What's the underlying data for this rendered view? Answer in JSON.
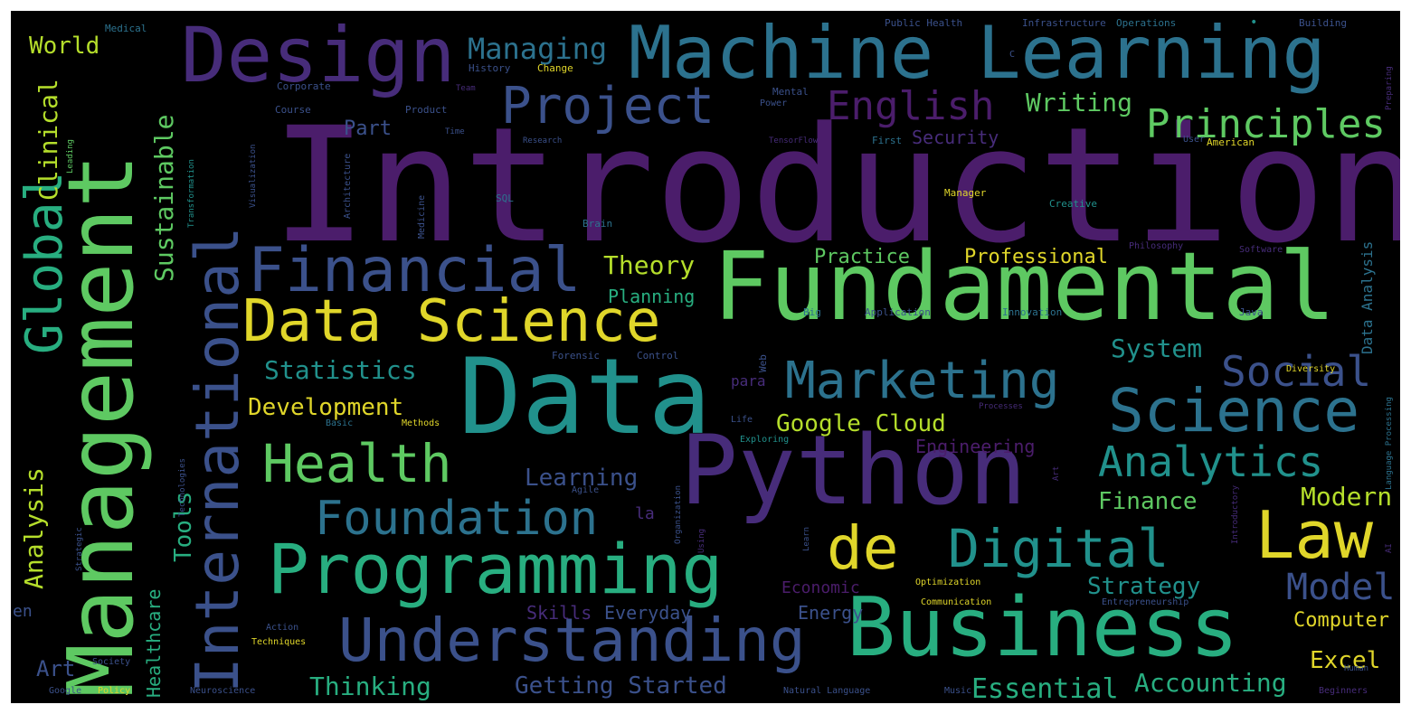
{
  "palette": {
    "background": "#000000",
    "frame": "#ffffff",
    "deep_purple": "#4b1d6b",
    "purple": "#472c7a",
    "indigo": "#3b518b",
    "blue": "#2c728e",
    "teal": "#21918c",
    "green": "#28ae80",
    "lime": "#5ec962",
    "yellow": "#b5de2b",
    "bright_yellow": "#e0d62a"
  },
  "words": {
    "introduction": "Introduction",
    "fundamental": "Fundamental",
    "management": "Management",
    "machine_learning": "Machine Learning",
    "data": "Data",
    "python": "Python",
    "business": "Business",
    "design": "Design",
    "international": "International",
    "programming": "Programming",
    "data_science": "Data Science",
    "financial": "Financial",
    "understanding": "Understanding",
    "science": "Science",
    "global": "Global",
    "project": "Project",
    "health": "Health",
    "marketing": "Marketing",
    "de": "de",
    "digital": "Digital",
    "law": "Law",
    "foundation": "Foundation",
    "analytics": "Analytics",
    "english": "English",
    "principles": "Principles",
    "social": "Social",
    "managing": "Managing",
    "writing": "Writing",
    "model": "Model",
    "statistics": "Statistics",
    "development": "Development",
    "google_cloud": "Google Cloud",
    "theory": "Theory",
    "practice": "Practice",
    "professional": "Professional",
    "system": "System",
    "finance": "Finance",
    "modern": "Modern",
    "strategy": "Strategy",
    "essential": "Essential",
    "accounting": "Accounting",
    "getting_started": "Getting Started",
    "thinking": "Thinking",
    "excel": "Excel",
    "computer": "Computer",
    "learning": "Learning",
    "world": "World",
    "clinical": "Clinical",
    "sustainable": "Sustainable",
    "analysis": "Analysis",
    "tools": "Tools",
    "part": "Part",
    "planning": "Planning",
    "security": "Security",
    "engineering": "Engineering",
    "skills": "Skills",
    "everyday": "Everyday",
    "energy": "Energy",
    "economic": "Economic",
    "art": "Art",
    "en": "en",
    "la": "la",
    "para": "para",
    "healthcare": "Healthcare",
    "data_analysis": "Data Analysis",
    "medical": "Medical",
    "history": "History",
    "change": "Change",
    "corporate": "Corporate",
    "course": "Course",
    "product": "Product",
    "time": "Time",
    "research": "Research",
    "public_health": "Public Health",
    "infrastructure": "Infrastructure",
    "operations": "Operations",
    "building": "Building",
    "preparing": "Preparing",
    "power": "Power",
    "mental": "Mental",
    "brain": "Brain",
    "first": "First",
    "tensorflow": "TensorFlow",
    "user": "User",
    "american": "American",
    "manager": "Manager",
    "creative": "Creative",
    "sql": "SQL",
    "medicine": "Medicine",
    "architecture": "Architecture",
    "visualization": "Visualization",
    "transformation": "Transformation",
    "philosophy": "Philosophy",
    "software": "Software",
    "big": "Big",
    "application": "Application",
    "innovation": "Innovation",
    "java": "Java",
    "forensic": "Forensic",
    "control": "Control",
    "diversity": "Diversity",
    "basic": "Basic",
    "methods": "Methods",
    "processes": "Processes",
    "life": "Life",
    "exploring": "Exploring",
    "web": "Web",
    "agile": "Agile",
    "technologies": "Technologies",
    "organization": "Organization",
    "strategic": "Strategic",
    "action": "Action",
    "optimization": "Optimization",
    "communication": "Communication",
    "entrepreneurship": "Entrepreneurship",
    "techniques": "Techniques",
    "society": "Society",
    "policy": "Policy",
    "google": "Google",
    "neuroscience": "Neuroscience",
    "natural_language": "Natural Language",
    "music": "Music",
    "human": "Human",
    "beginners": "Beginners",
    "language_processing": "Language Processing",
    "introductory": "Introductory",
    "learn": "Learn",
    "using": "Using",
    "leading": "Leading",
    "art_small": "Art",
    "c": "C",
    "team": "Team",
    "ai": "AI",
    "dot": "•"
  }
}
